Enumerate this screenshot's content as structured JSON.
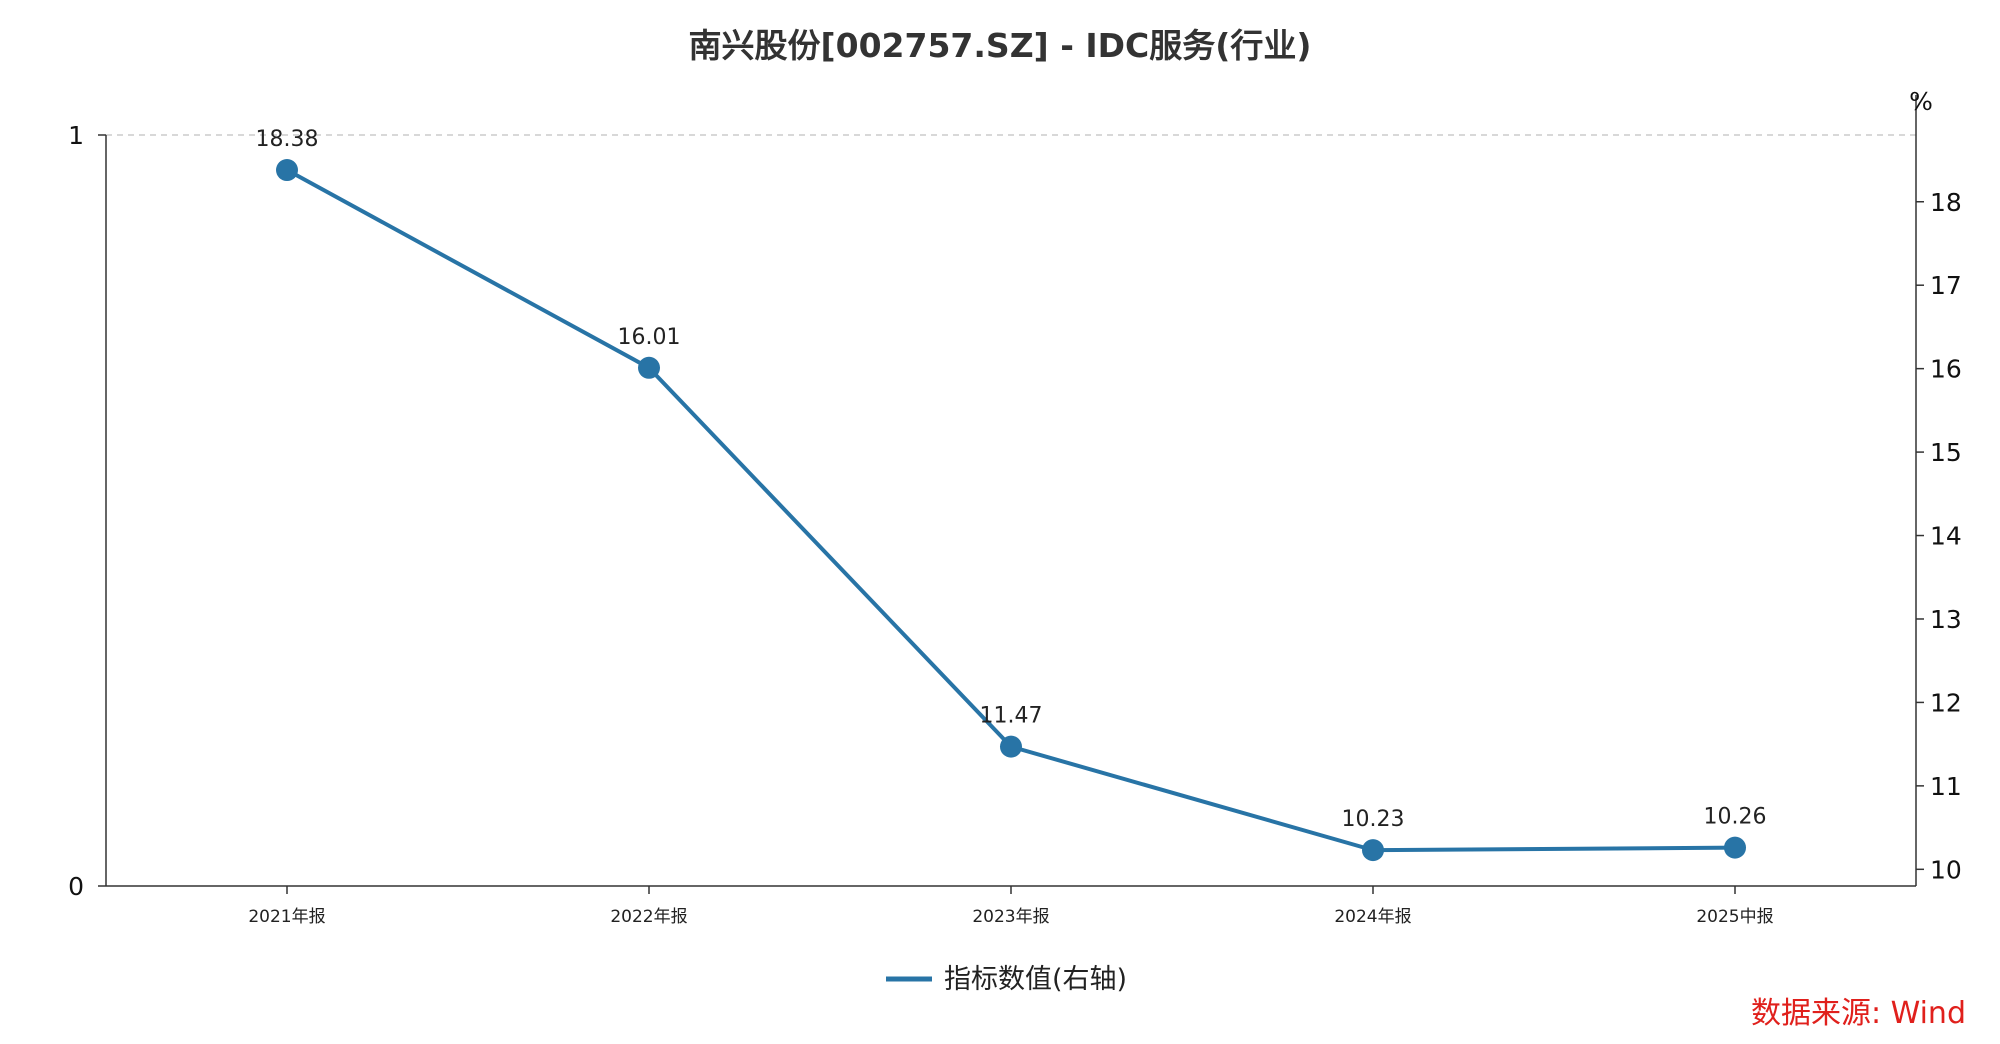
{
  "chart_data": {
    "type": "line",
    "title": "南兴股份[002757.SZ] - IDC服务(行业)",
    "categories": [
      "2021年报",
      "2022年报",
      "2023年报",
      "2024年报",
      "2025中报"
    ],
    "series": [
      {
        "name": "指标数值(右轴)",
        "axis": "right",
        "values": [
          18.38,
          16.01,
          11.47,
          10.23,
          10.26
        ],
        "data_labels": [
          "18.38",
          "16.01",
          "11.47",
          "10.23",
          "10.26"
        ],
        "color": "#2874a6"
      }
    ],
    "left_axis": {
      "ylim": [
        0,
        1
      ],
      "ticks": [
        0,
        1
      ],
      "tick_labels": [
        "0",
        "1"
      ],
      "top_gridline": "dashed"
    },
    "right_axis": {
      "unit_label": "%",
      "ylim": [
        9.8,
        18.8
      ],
      "ticks": [
        10,
        11,
        12,
        13,
        14,
        15,
        16,
        17,
        18
      ],
      "tick_labels": [
        "10",
        "11",
        "12",
        "13",
        "14",
        "15",
        "16",
        "17",
        "18"
      ]
    },
    "legend": {
      "placement": "bottom-center"
    },
    "source": "数据来源: Wind",
    "colors": {
      "source": "#e0201c",
      "axis": "#333333",
      "grid": "#cccccc"
    }
  }
}
